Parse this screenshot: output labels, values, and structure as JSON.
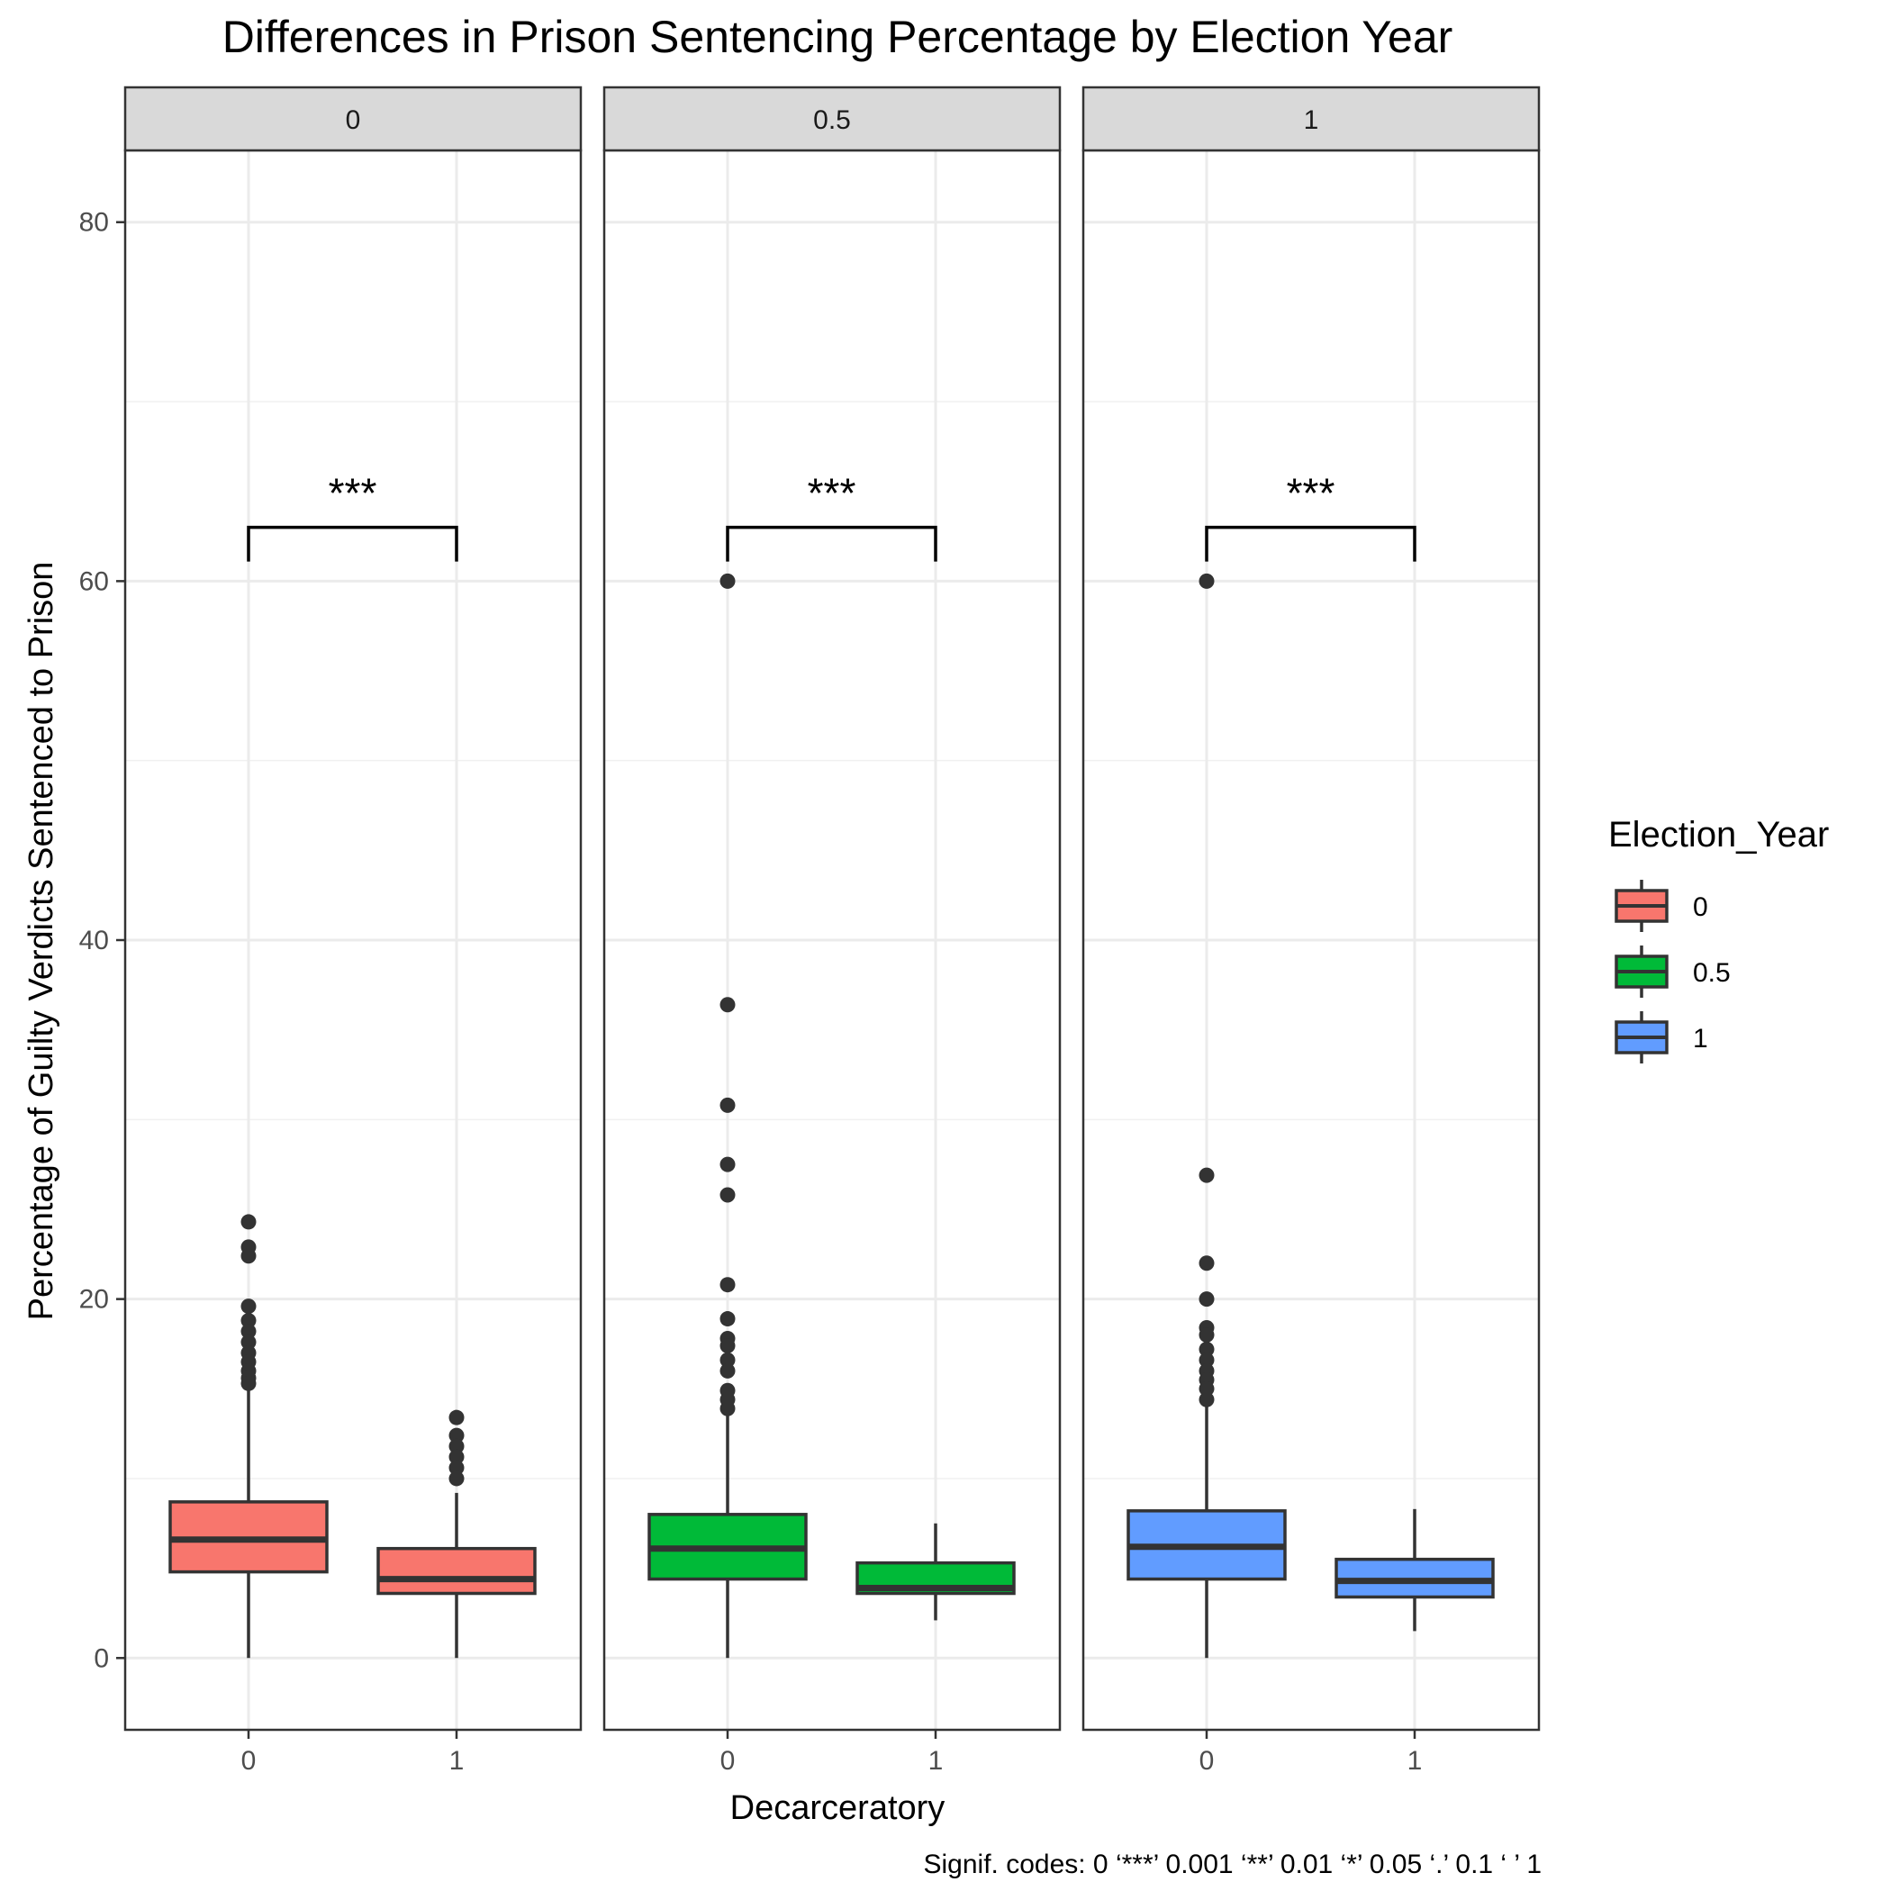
{
  "chart_data": {
    "type": "boxplot",
    "title": "Differences in Prison Sentencing Percentage by Election Year",
    "xlabel": "Decarceratory",
    "ylabel": "Percentage of Guilty Verdicts Sentenced to Prison",
    "ylim": [
      -4,
      84
    ],
    "yticks": [
      "0",
      "20",
      "40",
      "60",
      "80"
    ],
    "ytick_values": [
      0,
      20,
      40,
      60,
      80
    ],
    "grid": true,
    "categories": [
      "0",
      "1"
    ],
    "legend": {
      "title": "Election_Year",
      "position": "right",
      "entries": [
        {
          "label": "0",
          "color": "#F8766D"
        },
        {
          "label": "0.5",
          "color": "#00BA38"
        },
        {
          "label": "1",
          "color": "#619CFF"
        }
      ]
    },
    "facets": [
      {
        "label": "0",
        "color": "#F8766D",
        "significance": "***",
        "boxes": [
          {
            "x": "0",
            "lower_whisker": 0,
            "q1": 4.8,
            "median": 6.6,
            "q3": 8.7,
            "upper_whisker": 15.1,
            "outliers": [
              24.3,
              22.9,
              22.4,
              19.6,
              18.8,
              18.2,
              17.6,
              17.0,
              16.5,
              16.0,
              15.6,
              15.3
            ]
          },
          {
            "x": "1",
            "lower_whisker": 0,
            "q1": 3.6,
            "median": 4.4,
            "q3": 6.1,
            "upper_whisker": 9.2,
            "outliers": [
              13.4,
              12.4,
              11.8,
              11.2,
              10.6,
              10.0
            ]
          }
        ]
      },
      {
        "label": "0.5",
        "color": "#00BA38",
        "significance": "***",
        "boxes": [
          {
            "x": "0",
            "lower_whisker": 0,
            "q1": 4.4,
            "median": 6.1,
            "q3": 8.0,
            "upper_whisker": 13.5,
            "outliers": [
              60.0,
              36.4,
              30.8,
              27.5,
              25.8,
              20.8,
              18.9,
              17.8,
              17.4,
              16.6,
              16.0,
              14.9,
              14.4,
              13.9
            ]
          },
          {
            "x": "1",
            "lower_whisker": 2.1,
            "q1": 3.6,
            "median": 3.9,
            "q3": 5.3,
            "upper_whisker": 7.5,
            "outliers": []
          }
        ]
      },
      {
        "label": "1",
        "color": "#619CFF",
        "significance": "***",
        "boxes": [
          {
            "x": "0",
            "lower_whisker": 0,
            "q1": 4.4,
            "median": 6.2,
            "q3": 8.2,
            "upper_whisker": 14.2,
            "outliers": [
              60.0,
              26.9,
              22.0,
              20.0,
              18.4,
              18.0,
              17.2,
              16.6,
              16.0,
              15.5,
              15.0,
              14.4
            ]
          },
          {
            "x": "1",
            "lower_whisker": 1.5,
            "q1": 3.4,
            "median": 4.3,
            "q3": 5.5,
            "upper_whisker": 8.3,
            "outliers": []
          }
        ]
      }
    ],
    "bracket_y": 63,
    "signif_note": "Signif. codes:  0 ‘***’ 0.001 ‘**’ 0.01 ‘*’ 0.05 ‘.’ 0.1 ‘ ’ 1"
  }
}
